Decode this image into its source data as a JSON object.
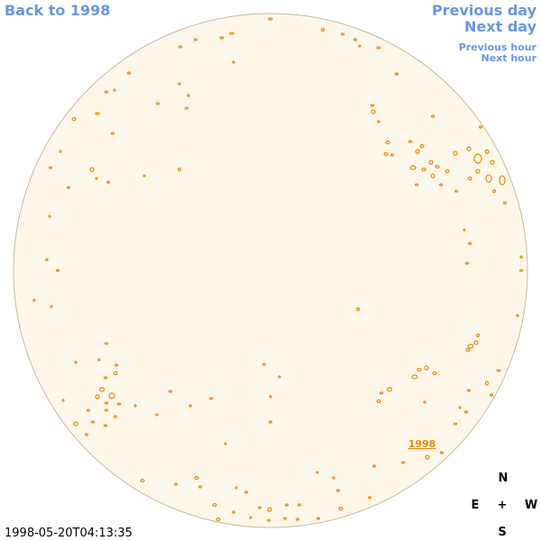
{
  "navigation": {
    "back": "Back to 1998",
    "previous_day": "Previous day",
    "next_day": "Next day",
    "previous_hour": "Previous hour",
    "next_hour": "Next hour"
  },
  "disk_label": "1998",
  "compass": {
    "north": "N",
    "east": "E",
    "center": "+",
    "west": "W",
    "south": "S"
  },
  "timestamp": "1998-05-20T04:13:35"
}
